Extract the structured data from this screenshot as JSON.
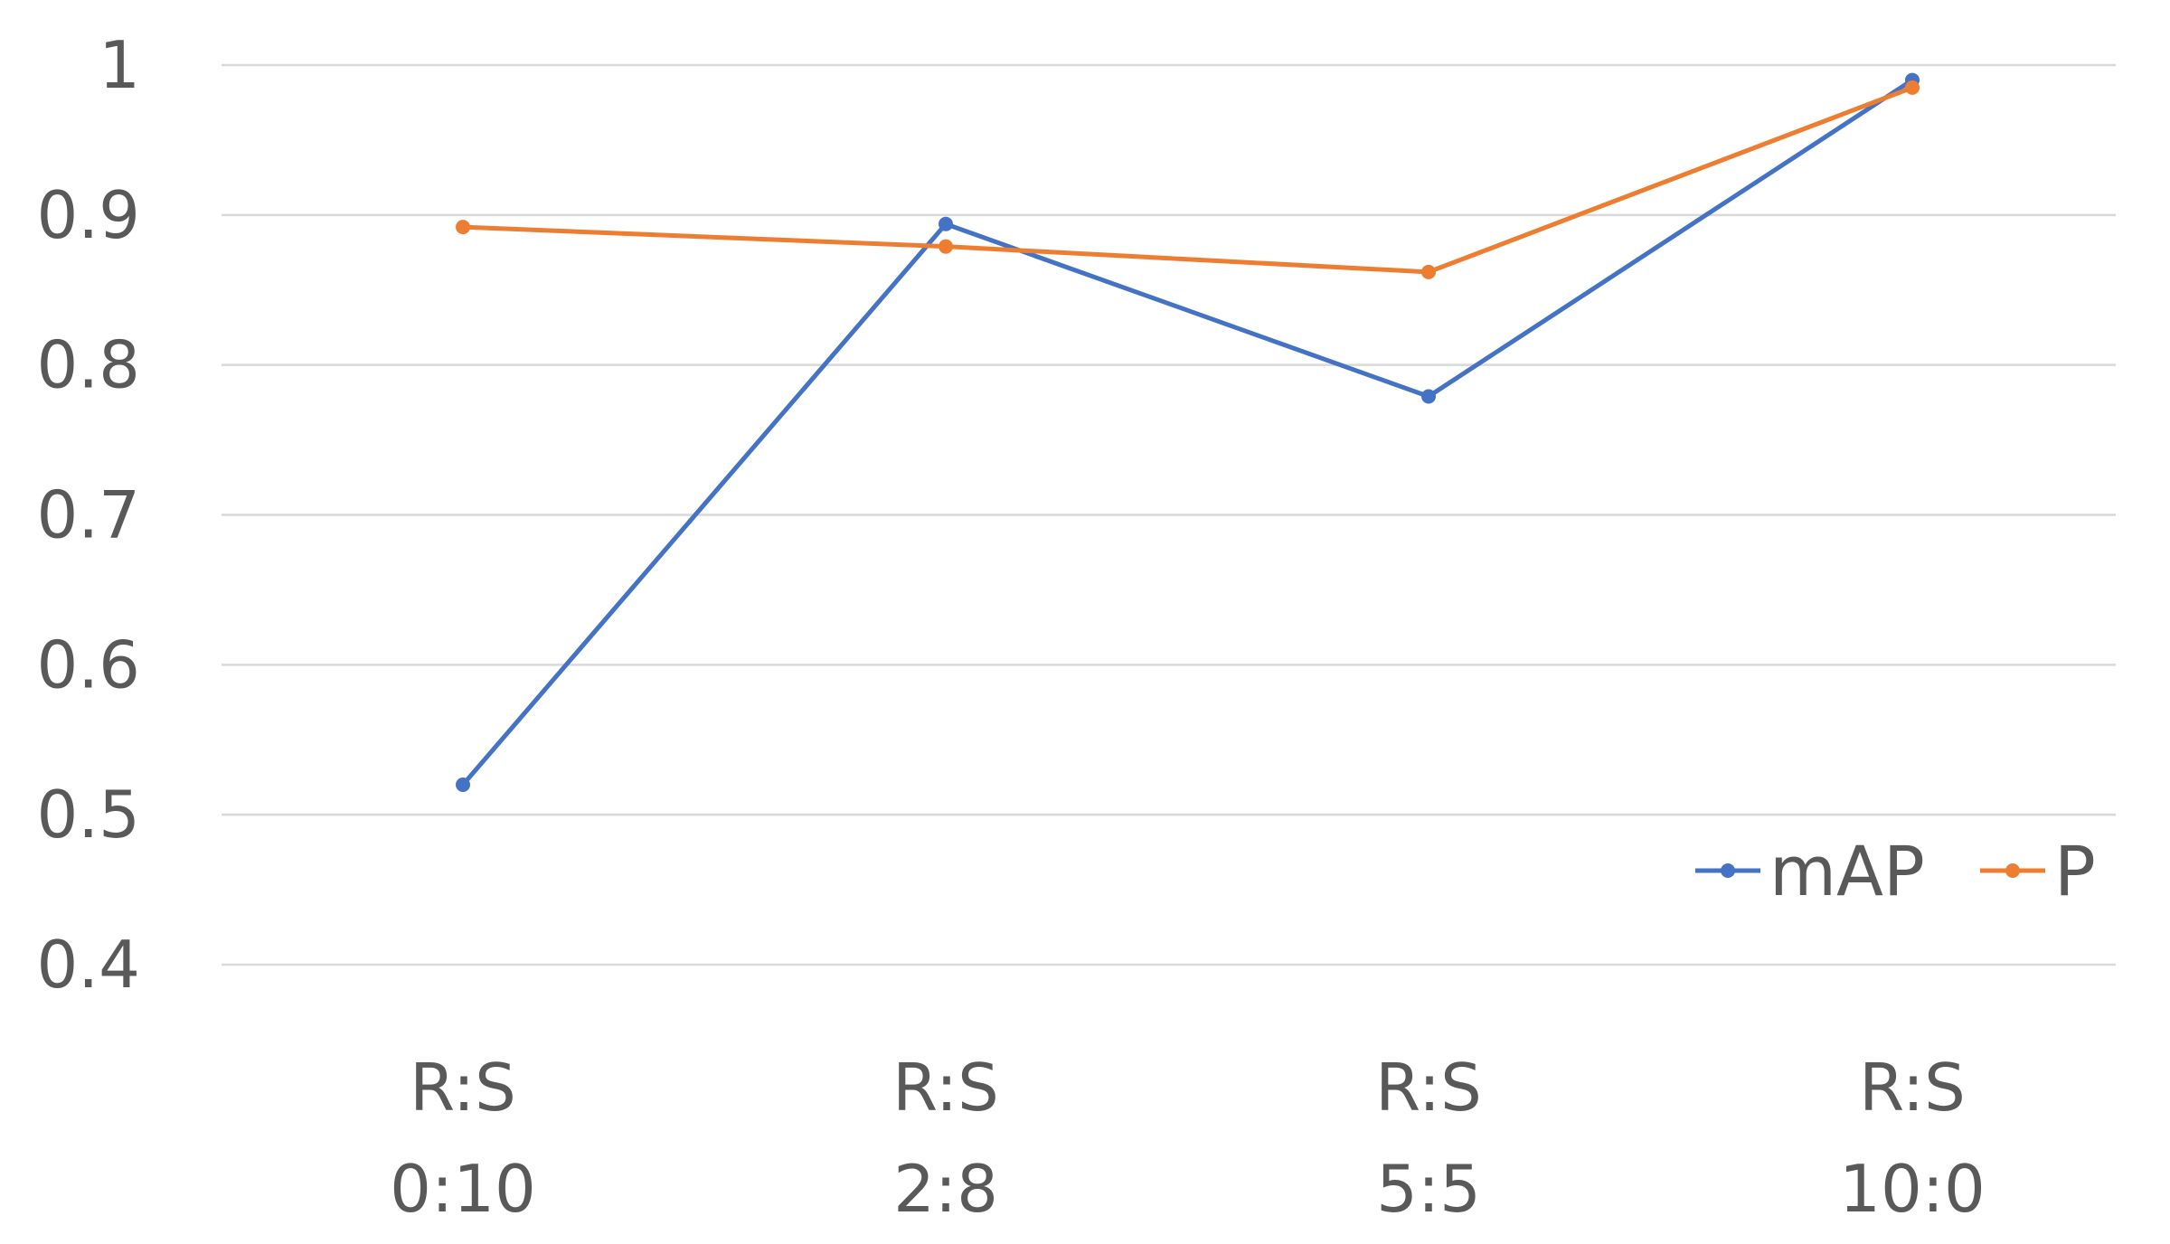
{
  "chart_data": {
    "type": "line",
    "categories": [
      [
        "R:S",
        "0:10"
      ],
      [
        "R:S",
        "2:8"
      ],
      [
        "R:S",
        "5:5"
      ],
      [
        "R:S",
        "10:0"
      ]
    ],
    "series": [
      {
        "name": "mAP",
        "values": [
          0.52,
          0.894,
          0.779,
          0.99
        ],
        "color": "#4472c4"
      },
      {
        "name": "P",
        "values": [
          0.892,
          0.879,
          0.862,
          0.985
        ],
        "color": "#ed7d31"
      }
    ],
    "yticks": [
      "0.4",
      "0.5",
      "0.6",
      "0.7",
      "0.8",
      "0.9",
      "1"
    ],
    "ylim": [
      0.4,
      1.0
    ],
    "grid": true,
    "legend_position": "bottom-right"
  }
}
